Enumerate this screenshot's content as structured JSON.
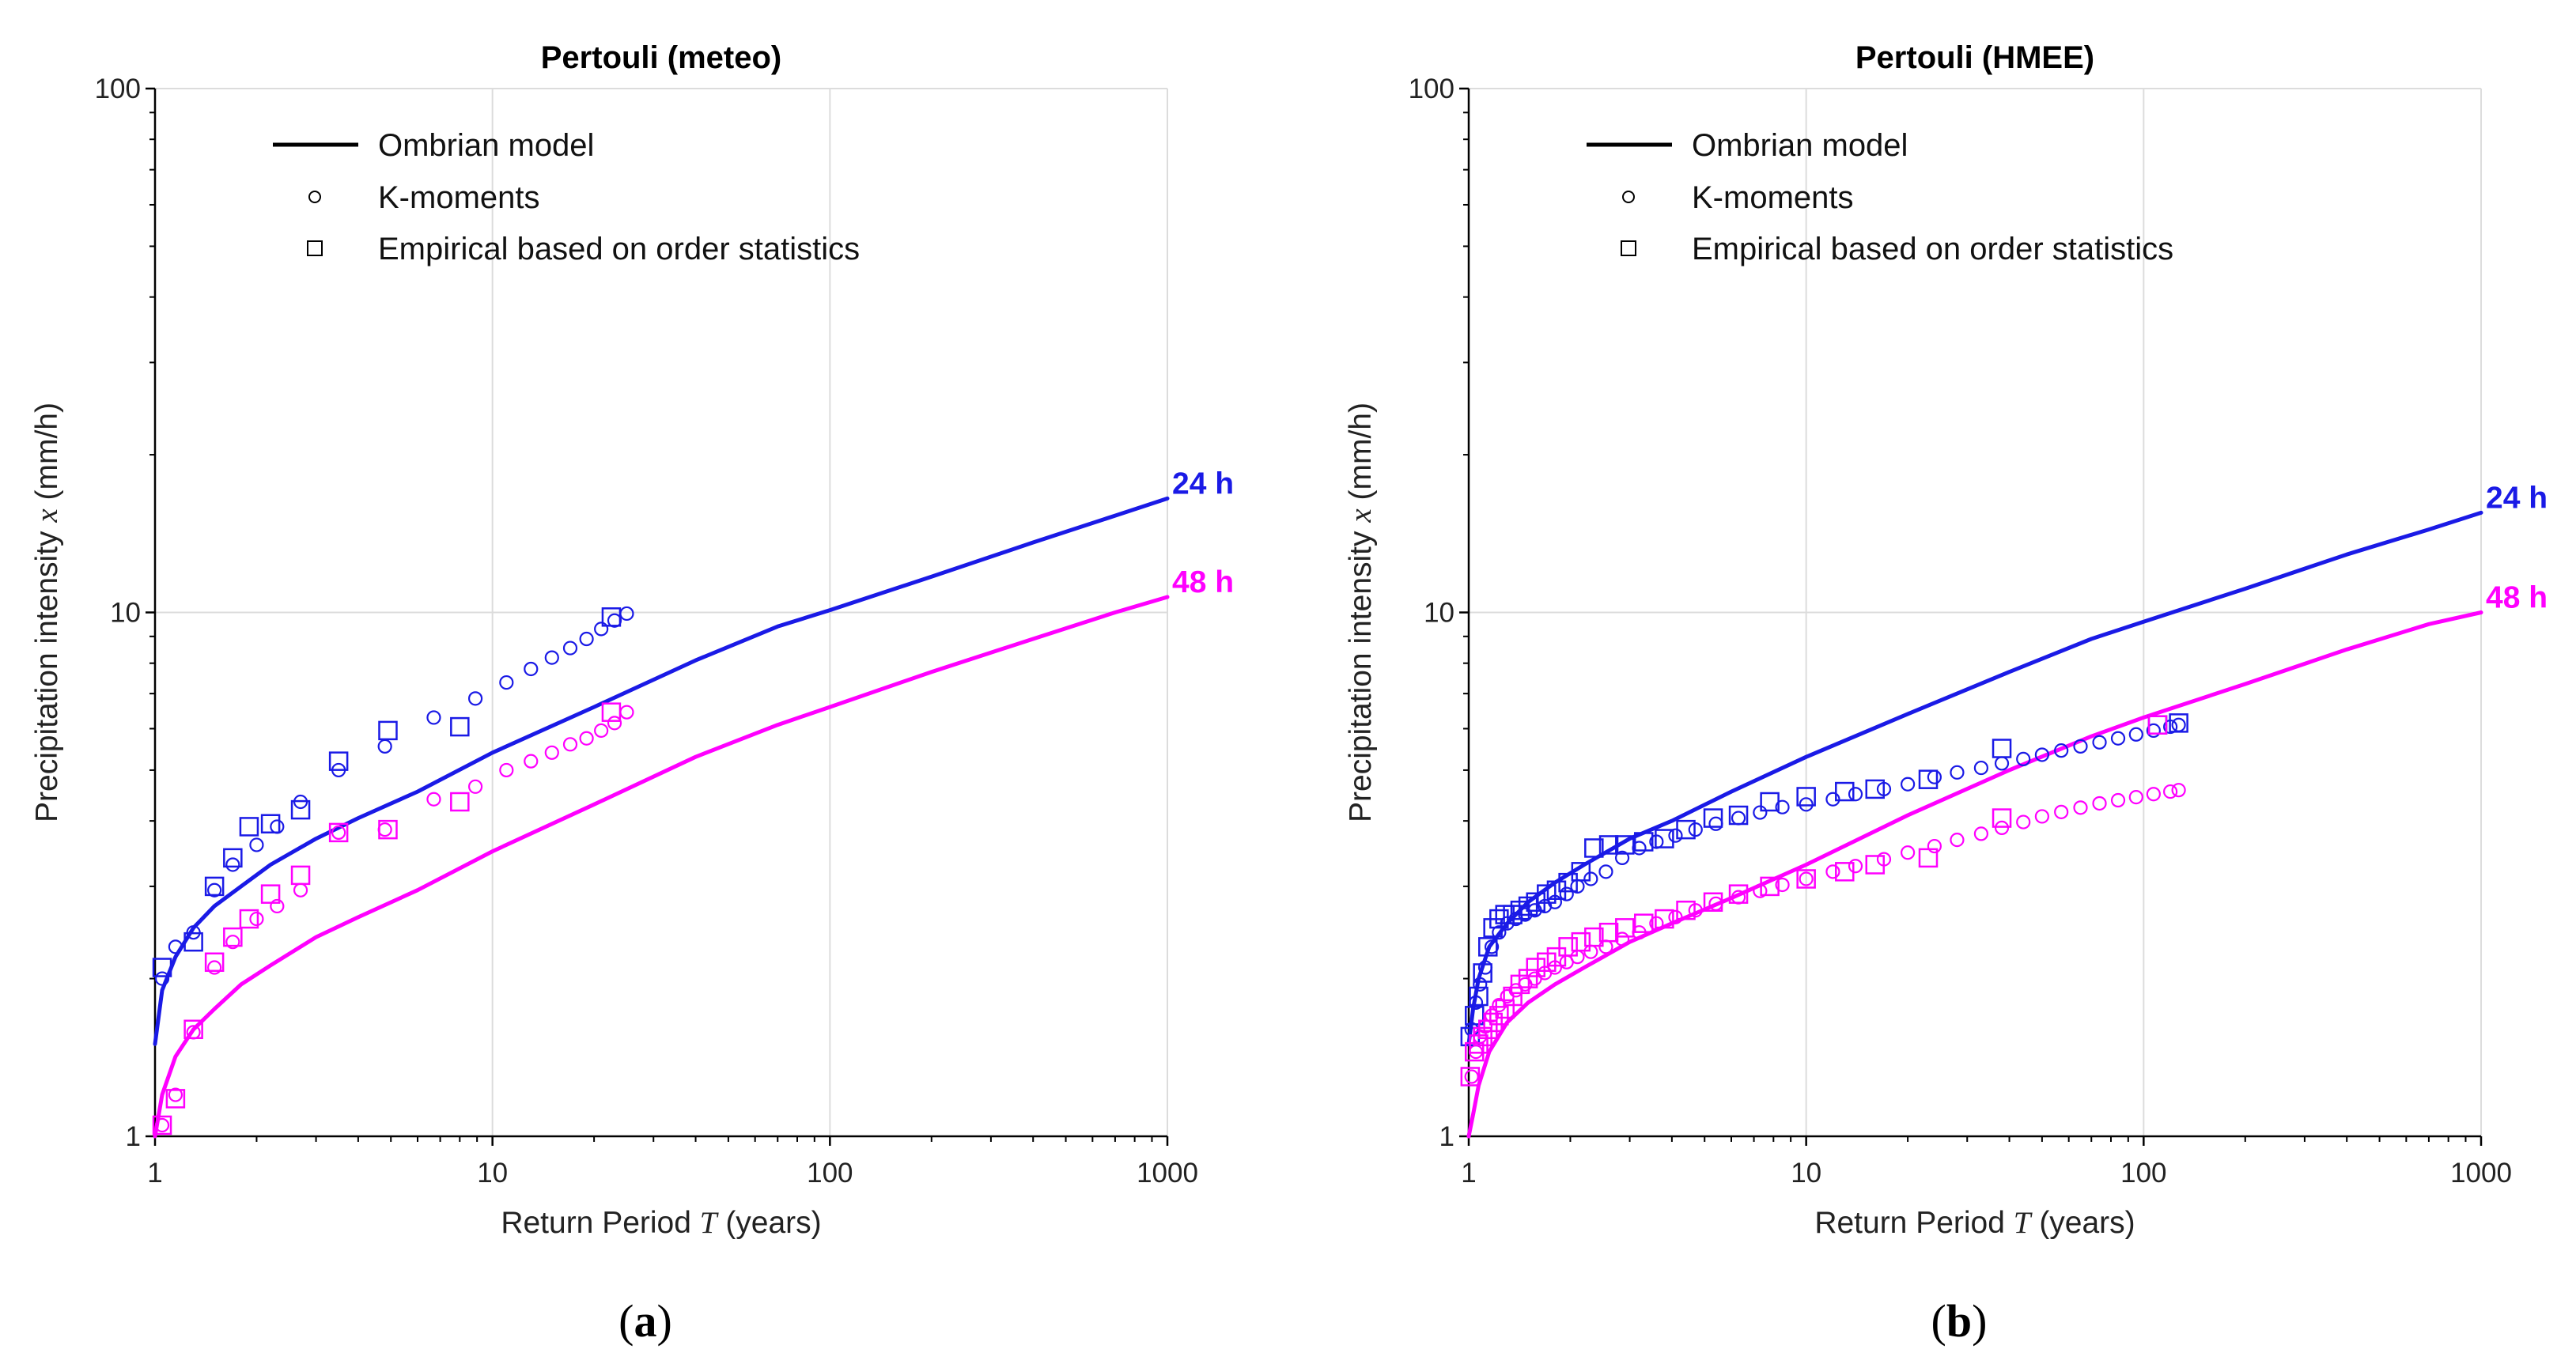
{
  "colors": {
    "24 h": "#1a1ae6",
    "48 h": "#ff00ff",
    "axis": "#000000",
    "grid": "#dcdcdc"
  },
  "legend": {
    "model_label": "Ombrian model",
    "kmoments_label": "K-moments",
    "empirical_label": "Empirical based on order statistics"
  },
  "chart_data": [
    {
      "id": "a",
      "type": "scatter",
      "title": "Pertouli (meteo)",
      "caption": "a",
      "xlabel": {
        "pre": "Return Period ",
        "symbol": "T",
        "post": " (years)"
      },
      "ylabel": {
        "pre": "Precipitation intensity ",
        "symbol": "x",
        "post": " (mm/h)"
      },
      "x_scale": "log",
      "y_scale": "log",
      "xlim": [
        1,
        1000
      ],
      "ylim": [
        1,
        100
      ],
      "x_ticks": [
        "1",
        "10",
        "100",
        "1000"
      ],
      "y_ticks": [
        "1",
        "10",
        "100"
      ],
      "grid": true,
      "legend_position": "top-left",
      "series": [
        {
          "name": "24 h",
          "kind": "model",
          "x": [
            1,
            1.05,
            1.15,
            1.3,
            1.5,
            1.8,
            2.2,
            3,
            4,
            6,
            10,
            20,
            40,
            70,
            100,
            200,
            400,
            700,
            1000
          ],
          "y": [
            1.5,
            1.9,
            2.2,
            2.5,
            2.75,
            3.0,
            3.3,
            3.7,
            4.05,
            4.55,
            5.4,
            6.6,
            8.1,
            9.4,
            10.1,
            11.7,
            13.6,
            15.3,
            16.5
          ]
        },
        {
          "name": "48 h",
          "kind": "model",
          "x": [
            1,
            1.05,
            1.15,
            1.3,
            1.5,
            1.8,
            2.2,
            3,
            4,
            6,
            10,
            20,
            40,
            70,
            100,
            200,
            400,
            700,
            1000
          ],
          "y": [
            1.0,
            1.2,
            1.42,
            1.6,
            1.75,
            1.95,
            2.12,
            2.4,
            2.62,
            2.95,
            3.5,
            4.3,
            5.3,
            6.1,
            6.6,
            7.7,
            8.9,
            10.0,
            10.7
          ]
        },
        {
          "name": "24 h",
          "kind": "kmoments",
          "x": [
            1.05,
            1.15,
            1.3,
            1.5,
            1.7,
            2.0,
            2.3,
            2.7,
            3.5,
            4.8,
            6.7,
            8.9,
            11,
            13,
            15,
            17,
            19,
            21,
            23,
            25
          ],
          "y": [
            2.0,
            2.3,
            2.45,
            2.95,
            3.3,
            3.6,
            3.9,
            4.35,
            5.0,
            5.55,
            6.3,
            6.85,
            7.35,
            7.8,
            8.2,
            8.55,
            8.9,
            9.3,
            9.65,
            9.95
          ]
        },
        {
          "name": "48 h",
          "kind": "kmoments",
          "x": [
            1.05,
            1.15,
            1.3,
            1.5,
            1.7,
            2.0,
            2.3,
            2.7,
            3.5,
            4.8,
            6.7,
            8.9,
            11,
            13,
            15,
            17,
            19,
            21,
            23,
            25
          ],
          "y": [
            1.05,
            1.2,
            1.58,
            2.1,
            2.35,
            2.6,
            2.75,
            2.95,
            3.8,
            3.85,
            4.4,
            4.65,
            5.0,
            5.2,
            5.4,
            5.6,
            5.75,
            5.95,
            6.15,
            6.45
          ]
        },
        {
          "name": "24 h",
          "kind": "empirical",
          "x": [
            1.05,
            1.3,
            1.5,
            1.7,
            1.9,
            2.2,
            2.7,
            3.5,
            4.9,
            8,
            22.5
          ],
          "y": [
            2.1,
            2.35,
            3.0,
            3.4,
            3.9,
            3.95,
            4.2,
            5.2,
            5.95,
            6.05,
            9.8
          ]
        },
        {
          "name": "48 h",
          "kind": "empirical",
          "x": [
            1.05,
            1.15,
            1.3,
            1.5,
            1.7,
            1.9,
            2.2,
            2.7,
            3.5,
            4.9,
            8,
            22.5
          ],
          "y": [
            1.05,
            1.18,
            1.6,
            2.15,
            2.4,
            2.6,
            2.9,
            3.15,
            3.8,
            3.85,
            4.35,
            6.45
          ]
        }
      ]
    },
    {
      "id": "b",
      "type": "scatter",
      "title": "Pertouli (HMEE)",
      "caption": "b",
      "xlabel": {
        "pre": "Return Period ",
        "symbol": "T",
        "post": " (years)"
      },
      "ylabel": {
        "pre": "Precipitation intensity ",
        "symbol": "x",
        "post": " (mm/h)"
      },
      "x_scale": "log",
      "y_scale": "log",
      "xlim": [
        1,
        1000
      ],
      "ylim": [
        1,
        100
      ],
      "x_ticks": [
        "1",
        "10",
        "100",
        "1000"
      ],
      "y_ticks": [
        "1",
        "10",
        "100"
      ],
      "grid": true,
      "legend_position": "top-left",
      "series": [
        {
          "name": "24 h",
          "kind": "model",
          "x": [
            1,
            1.03,
            1.07,
            1.15,
            1.3,
            1.5,
            1.8,
            2.2,
            3,
            4,
            6,
            10,
            20,
            40,
            70,
            100,
            200,
            400,
            700,
            1000
          ],
          "y": [
            1.5,
            1.75,
            2.0,
            2.3,
            2.55,
            2.8,
            3.05,
            3.3,
            3.7,
            4.0,
            4.55,
            5.3,
            6.4,
            7.7,
            8.9,
            9.6,
            11.1,
            12.9,
            14.4,
            15.5
          ]
        },
        {
          "name": "48 h",
          "kind": "model",
          "x": [
            1,
            1.03,
            1.07,
            1.15,
            1.3,
            1.5,
            1.8,
            2.2,
            3,
            4,
            6,
            10,
            20,
            40,
            70,
            100,
            200,
            400,
            700,
            1000
          ],
          "y": [
            1.0,
            1.1,
            1.25,
            1.45,
            1.65,
            1.8,
            1.95,
            2.1,
            2.35,
            2.55,
            2.85,
            3.3,
            4.1,
            5.0,
            5.8,
            6.3,
            7.3,
            8.5,
            9.5,
            10.0
          ]
        },
        {
          "name": "24 h",
          "kind": "kmoments",
          "x": [
            1.02,
            1.05,
            1.08,
            1.12,
            1.17,
            1.23,
            1.3,
            1.38,
            1.47,
            1.57,
            1.68,
            1.8,
            1.95,
            2.1,
            2.3,
            2.55,
            2.85,
            3.2,
            3.6,
            4.1,
            4.7,
            5.4,
            6.3,
            7.3,
            8.5,
            10,
            12,
            14,
            17,
            20,
            24,
            28,
            33,
            38,
            44,
            50,
            57,
            65,
            74,
            84,
            95,
            107,
            120,
            127
          ],
          "y": [
            1.6,
            1.8,
            1.95,
            2.1,
            2.3,
            2.45,
            2.55,
            2.6,
            2.65,
            2.7,
            2.75,
            2.8,
            2.9,
            3.0,
            3.1,
            3.2,
            3.4,
            3.55,
            3.65,
            3.75,
            3.85,
            3.95,
            4.05,
            4.15,
            4.25,
            4.3,
            4.4,
            4.5,
            4.6,
            4.7,
            4.85,
            4.95,
            5.05,
            5.15,
            5.25,
            5.35,
            5.45,
            5.55,
            5.65,
            5.75,
            5.85,
            5.95,
            6.05,
            6.1
          ]
        },
        {
          "name": "48 h",
          "kind": "kmoments",
          "x": [
            1.02,
            1.05,
            1.08,
            1.12,
            1.17,
            1.23,
            1.3,
            1.38,
            1.47,
            1.57,
            1.68,
            1.8,
            1.95,
            2.1,
            2.3,
            2.55,
            2.85,
            3.2,
            3.6,
            4.1,
            4.7,
            5.4,
            6.3,
            7.3,
            8.5,
            10,
            12,
            14,
            17,
            20,
            24,
            28,
            33,
            38,
            44,
            50,
            57,
            65,
            74,
            84,
            95,
            107,
            120,
            127
          ],
          "y": [
            1.3,
            1.45,
            1.55,
            1.62,
            1.7,
            1.78,
            1.85,
            1.9,
            1.95,
            2.0,
            2.05,
            2.1,
            2.15,
            2.2,
            2.25,
            2.3,
            2.38,
            2.45,
            2.55,
            2.62,
            2.7,
            2.78,
            2.86,
            2.94,
            3.02,
            3.1,
            3.2,
            3.28,
            3.38,
            3.48,
            3.58,
            3.68,
            3.78,
            3.88,
            3.98,
            4.08,
            4.16,
            4.24,
            4.32,
            4.38,
            4.44,
            4.5,
            4.55,
            4.58
          ]
        },
        {
          "name": "24 h",
          "kind": "empirical",
          "x": [
            1.01,
            1.04,
            1.07,
            1.1,
            1.14,
            1.18,
            1.23,
            1.28,
            1.35,
            1.42,
            1.5,
            1.58,
            1.7,
            1.82,
            1.97,
            2.15,
            2.35,
            2.6,
            2.9,
            3.3,
            3.8,
            4.4,
            5.3,
            6.3,
            7.8,
            10,
            13,
            16,
            23,
            38,
            110,
            127
          ],
          "y": [
            1.55,
            1.7,
            1.85,
            2.05,
            2.3,
            2.5,
            2.6,
            2.65,
            2.65,
            2.7,
            2.75,
            2.8,
            2.9,
            2.95,
            3.05,
            3.2,
            3.55,
            3.6,
            3.6,
            3.65,
            3.7,
            3.85,
            4.05,
            4.1,
            4.35,
            4.45,
            4.55,
            4.6,
            4.8,
            5.5,
            6.1,
            6.15
          ]
        },
        {
          "name": "48 h",
          "kind": "empirical",
          "x": [
            1.01,
            1.04,
            1.07,
            1.1,
            1.14,
            1.18,
            1.23,
            1.28,
            1.35,
            1.42,
            1.5,
            1.58,
            1.7,
            1.82,
            1.97,
            2.15,
            2.35,
            2.6,
            2.9,
            3.3,
            3.8,
            4.4,
            5.3,
            6.3,
            7.8,
            10,
            13,
            16,
            23,
            38,
            110
          ],
          "y": [
            1.3,
            1.45,
            1.5,
            1.55,
            1.6,
            1.65,
            1.7,
            1.75,
            1.85,
            1.95,
            2.0,
            2.1,
            2.15,
            2.2,
            2.3,
            2.35,
            2.4,
            2.45,
            2.5,
            2.55,
            2.6,
            2.7,
            2.8,
            2.9,
            3.0,
            3.1,
            3.2,
            3.3,
            3.4,
            4.05,
            6.1
          ]
        }
      ],
      "end_labels": [
        "24 h",
        "48 h"
      ]
    }
  ]
}
